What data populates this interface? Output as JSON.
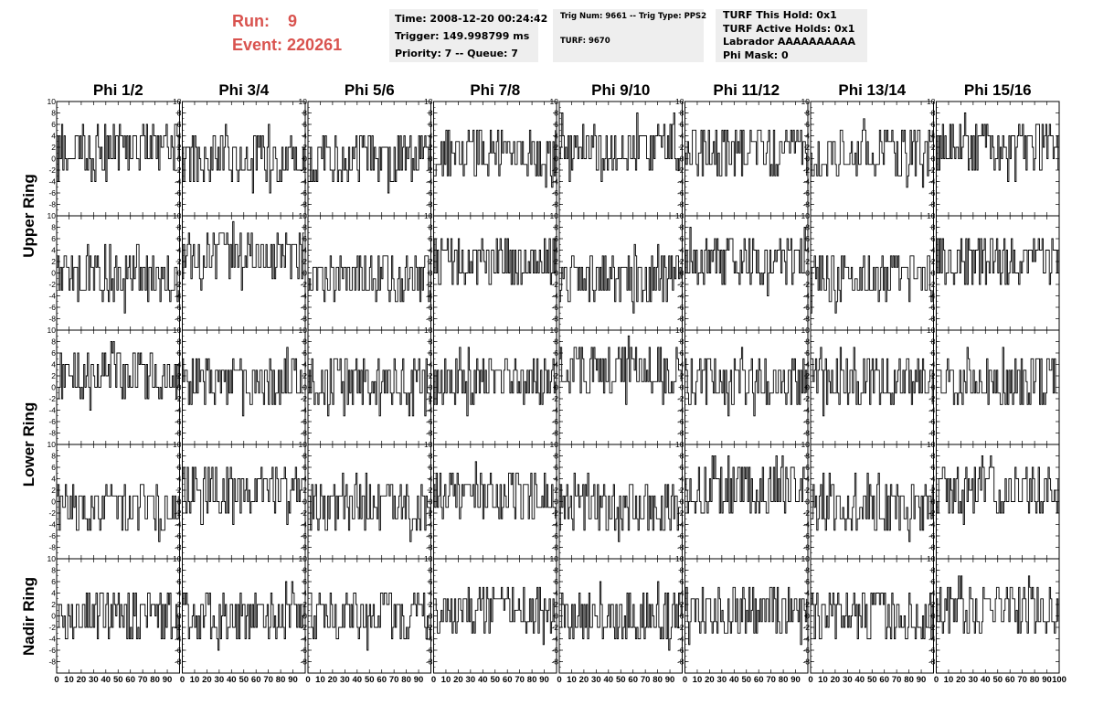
{
  "header": {
    "run_label": "Run:",
    "run_value": "9",
    "event_label": "Event:",
    "event_value": "220261"
  },
  "info_time": {
    "time": "Time: 2008-12-20 00:24:42",
    "trigger": "Trigger: 149.998799 ms",
    "priority": "Priority: 7 -- Queue: 7"
  },
  "info_trig": {
    "trig": "Trig Num: 9661 -- Trig Type: PPS2",
    "turf": "TURF: 9670"
  },
  "info_turf": {
    "hold": "TURF This Hold: 0x1",
    "active": "TURF Active Holds: 0x1",
    "labrador": "Labrador AAAAAAAAAA",
    "phimask": "Phi Mask: 0"
  },
  "chart_data": {
    "type": "line",
    "columns": [
      "Phi 1/2",
      "Phi 3/4",
      "Phi 5/6",
      "Phi 7/8",
      "Phi 9/10",
      "Phi 11/12",
      "Phi 13/14",
      "Phi 15/16"
    ],
    "row_labels": [
      "Upper Ring",
      "Lower Ring",
      "Nadir Ring"
    ],
    "panel_rows": 5,
    "xlim": [
      0,
      100
    ],
    "ylim": [
      -10,
      10
    ],
    "x_ticks": [
      0,
      10,
      20,
      30,
      40,
      50,
      60,
      70,
      80,
      90
    ],
    "x_tick_labels": [
      "0",
      "10",
      "20",
      "30",
      "40",
      "50",
      "60",
      "70",
      "80",
      "90"
    ],
    "last_x_tick_label": "100",
    "y_ticks": [
      -8,
      -6,
      -4,
      -2,
      0,
      2,
      4,
      6,
      8,
      10
    ],
    "y_tick_labels": [
      "-8",
      "-6",
      "-4",
      "-2",
      "0",
      "2",
      "4",
      "6",
      "8",
      "10"
    ],
    "samples_per_trace": 100,
    "panel_baselines": [
      [
        2,
        0,
        0,
        1,
        2,
        1,
        1,
        2
      ],
      [
        -1,
        3,
        -1,
        2,
        -1,
        2,
        -1,
        2
      ],
      [
        2,
        1,
        1,
        1,
        3,
        1,
        1,
        1
      ],
      [
        -1,
        2,
        -1,
        1,
        -1,
        2,
        -1,
        2
      ],
      [
        0,
        0,
        0,
        1,
        0,
        1,
        0,
        1
      ]
    ]
  }
}
